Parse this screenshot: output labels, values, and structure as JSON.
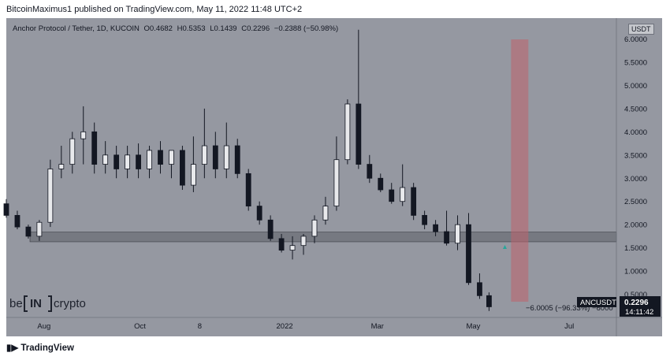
{
  "header": {
    "published": "BitcoinMaximus1 published on TradingView.com, May 11, 2022 11:48 UTC+2"
  },
  "legend": {
    "symbol": "Anchor Protocol / Tether, 1D, KUCOIN",
    "o_label": "O",
    "o_value": "0.4682",
    "h_label": "H",
    "h_value": "0.5353",
    "l_label": "L",
    "l_value": "0.1439",
    "c_label": "C",
    "c_value": "0.2296",
    "change": "−0.2388 (−50.98%)"
  },
  "currency": "USDT",
  "last_price_tag": {
    "symbol": "ANCUSDT",
    "price": "0.2296",
    "countdown": "14:11:42"
  },
  "measure_label": "−6.0005 (−96.33%) −6000",
  "watermark": {
    "left": "be",
    "mid": "IN",
    "right": "crypto"
  },
  "footer": {
    "brand": "TradingView"
  },
  "chart_data": {
    "type": "candlestick",
    "title": "Anchor Protocol / Tether, 1D, KUCOIN",
    "xlabel": "",
    "ylabel": "",
    "ylim": [
      0,
      6.45
    ],
    "y_ticks": [
      "0.5000",
      "1.0000",
      "1.5000",
      "2.0000",
      "2.5000",
      "3.0000",
      "3.5000",
      "4.0000",
      "4.5000",
      "5.0000",
      "5.5000",
      "6.0000"
    ],
    "y_tick_values": [
      0.5,
      1.0,
      1.5,
      2.0,
      2.5,
      3.0,
      3.5,
      4.0,
      4.5,
      5.0,
      5.5,
      6.0
    ],
    "x_ticks": [
      "Aug",
      "Oct",
      "8",
      "2022",
      "Mar",
      "May",
      "Jul"
    ],
    "x_tick_dates": [
      "2021-08-01",
      "2021-10-01",
      "2021-11-08",
      "2022-01-01",
      "2022-03-01",
      "2022-05-01",
      "2022-07-01"
    ],
    "x_range": [
      "2021-07-08",
      "2022-07-31"
    ],
    "support_zone": [
      1.63,
      1.84
    ],
    "highlight_range": [
      "2022-05-25",
      "2022-06-05"
    ],
    "series": [
      {
        "dates": [
          "2021-07-08",
          "2021-07-15",
          "2021-07-22",
          "2021-07-29",
          "2021-08-05",
          "2021-08-12",
          "2021-08-19",
          "2021-08-26",
          "2021-09-02",
          "2021-09-09",
          "2021-09-16",
          "2021-09-23",
          "2021-09-30",
          "2021-10-07",
          "2021-10-14",
          "2021-10-21",
          "2021-10-28",
          "2021-11-04",
          "2021-11-11",
          "2021-11-18",
          "2021-11-25",
          "2021-12-02",
          "2021-12-09",
          "2021-12-16",
          "2021-12-23",
          "2021-12-30",
          "2022-01-06",
          "2022-01-13",
          "2022-01-20",
          "2022-01-27",
          "2022-02-03",
          "2022-02-10",
          "2022-02-17",
          "2022-02-24",
          "2022-03-03",
          "2022-03-10",
          "2022-03-17",
          "2022-03-24",
          "2022-03-31",
          "2022-04-07",
          "2022-04-14",
          "2022-04-21",
          "2022-04-28",
          "2022-05-05",
          "2022-05-11"
        ],
        "open": [
          2.45,
          2.2,
          1.95,
          1.75,
          2.05,
          3.2,
          3.3,
          3.85,
          4.0,
          3.3,
          3.5,
          3.2,
          3.5,
          3.2,
          3.6,
          3.3,
          3.6,
          2.85,
          3.3,
          3.7,
          3.2,
          3.7,
          3.1,
          2.4,
          2.1,
          1.7,
          1.45,
          1.55,
          1.75,
          2.1,
          2.4,
          3.4,
          4.6,
          3.3,
          3.0,
          2.75,
          2.5,
          2.8,
          2.2,
          2.0,
          1.85,
          1.6,
          2.0,
          0.75,
          0.47
        ],
        "high": [
          2.55,
          2.3,
          2.0,
          2.1,
          3.4,
          3.7,
          4.0,
          4.55,
          4.2,
          3.8,
          3.7,
          3.7,
          3.75,
          3.7,
          3.8,
          3.6,
          3.7,
          3.9,
          4.5,
          4.0,
          4.2,
          3.85,
          3.2,
          2.5,
          2.2,
          1.8,
          1.75,
          1.8,
          2.2,
          2.6,
          3.9,
          4.7,
          6.2,
          3.5,
          3.1,
          2.9,
          3.3,
          2.9,
          2.3,
          2.1,
          2.3,
          2.2,
          2.25,
          0.95,
          0.54
        ],
        "low": [
          2.15,
          1.9,
          1.7,
          1.65,
          1.95,
          3.0,
          3.1,
          3.3,
          3.1,
          3.1,
          3.0,
          3.0,
          3.0,
          3.0,
          3.1,
          3.0,
          2.75,
          2.7,
          3.0,
          3.0,
          3.0,
          3.0,
          2.3,
          2.0,
          1.65,
          1.4,
          1.25,
          1.35,
          1.6,
          2.0,
          2.3,
          3.3,
          3.2,
          2.9,
          2.7,
          2.45,
          2.4,
          2.1,
          1.9,
          1.75,
          1.55,
          1.45,
          0.7,
          0.4,
          0.14
        ],
        "close": [
          2.2,
          1.95,
          1.75,
          2.05,
          3.2,
          3.3,
          3.85,
          4.0,
          3.3,
          3.5,
          3.2,
          3.5,
          3.2,
          3.6,
          3.3,
          3.6,
          2.85,
          3.3,
          3.7,
          3.2,
          3.7,
          3.1,
          2.4,
          2.1,
          1.7,
          1.45,
          1.55,
          1.75,
          2.1,
          2.4,
          3.4,
          4.6,
          3.3,
          3.0,
          2.75,
          2.5,
          2.8,
          2.2,
          2.0,
          1.85,
          1.6,
          2.0,
          0.75,
          0.47,
          0.23
        ]
      }
    ]
  }
}
